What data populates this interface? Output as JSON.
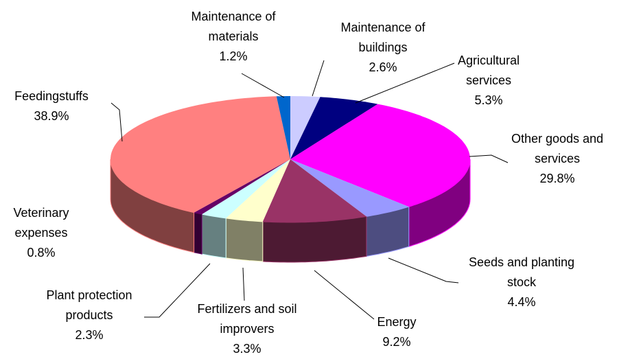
{
  "chart_data": {
    "type": "pie3d",
    "categories": [
      "Maintenance of buildings",
      "Agricultural services",
      "Other goods and services",
      "Seeds and planting stock",
      "Energy",
      "Fertilizers and soil improvers",
      "Plant protection products",
      "Veterinary expenses",
      "Feedingstuffs",
      "Maintenance of materials"
    ],
    "values": [
      2.6,
      5.3,
      29.8,
      4.4,
      9.2,
      3.3,
      2.3,
      0.8,
      38.9,
      1.2
    ],
    "value_labels": [
      "2.6%",
      "5.3%",
      "29.8%",
      "4.4%",
      "9.2%",
      "3.3%",
      "2.3%",
      "0.8%",
      "38.9%",
      "1.2%"
    ],
    "colors": [
      "#ccccff",
      "#000080",
      "#ff00ff",
      "#9999ff",
      "#993366",
      "#ffffcc",
      "#ccffff",
      "#660066",
      "#ff8080",
      "#0066cc"
    ]
  }
}
